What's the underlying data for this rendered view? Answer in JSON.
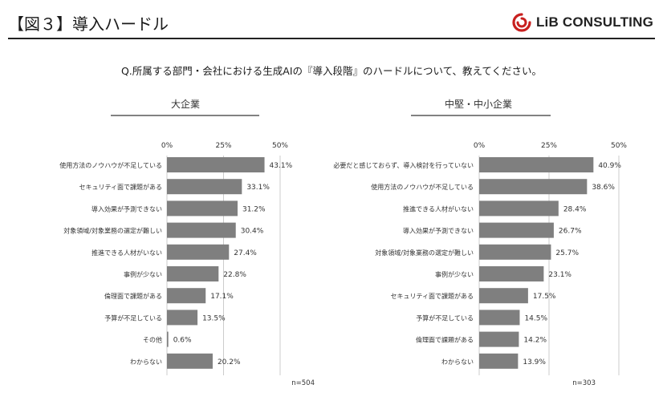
{
  "header": {
    "title": "【図３】導入ハードル"
  },
  "logo": {
    "text": "LiB CONSULTING",
    "color": "#c8201f"
  },
  "question": "Q.所属する部門・会社における生成AIの『導入段階』のハードルについて、教えてください。",
  "colors": {
    "bar": "#7f7f7f",
    "axis": "#bfbfbf",
    "text": "#333333",
    "rule": "#595959"
  },
  "chart_data": [
    {
      "type": "bar",
      "orientation": "horizontal",
      "title": "大企業",
      "categories": [
        "使用方法のノウハウが不足している",
        "セキュリティ面で課題がある",
        "導入効果が予測できない",
        "対象領域/対象業務の選定が難しい",
        "推進できる人材がいない",
        "事例が少ない",
        "倫理面で課題がある",
        "予算が不足している",
        "その他",
        "わからない"
      ],
      "values": [
        43.1,
        33.1,
        31.2,
        30.4,
        27.4,
        22.8,
        17.1,
        13.5,
        0.6,
        20.2
      ],
      "value_labels": [
        "43.1%",
        "33.1%",
        "31.2%",
        "30.4%",
        "27.4%",
        "22.8%",
        "17.1%",
        "13.5%",
        "0.6%",
        "20.2%"
      ],
      "ticks": [
        0,
        25,
        50
      ],
      "tick_labels": [
        "0%",
        "25%",
        "50%"
      ],
      "xlim": [
        0,
        50
      ],
      "note": "n=504"
    },
    {
      "type": "bar",
      "orientation": "horizontal",
      "title": "中堅・中小企業",
      "categories": [
        "必要だと感じておらず、導入検討を行っていない",
        "使用方法のノウハウが不足している",
        "推進できる人材がいない",
        "導入効果が予測できない",
        "対象領域/対象業務の選定が難しい",
        "事例が少ない",
        "セキュリティ面で課題がある",
        "予算が不足している",
        "倫理面で課題がある",
        "わからない"
      ],
      "values": [
        40.9,
        38.6,
        28.4,
        26.7,
        25.7,
        23.1,
        17.5,
        14.5,
        14.2,
        13.9
      ],
      "value_labels": [
        "40.9%",
        "38.6%",
        "28.4%",
        "26.7%",
        "25.7%",
        "23.1%",
        "17.5%",
        "14.5%",
        "14.2%",
        "13.9%"
      ],
      "ticks": [
        0,
        25,
        50
      ],
      "tick_labels": [
        "0%",
        "25%",
        "50%"
      ],
      "xlim": [
        0,
        50
      ],
      "note": "n=303"
    }
  ]
}
